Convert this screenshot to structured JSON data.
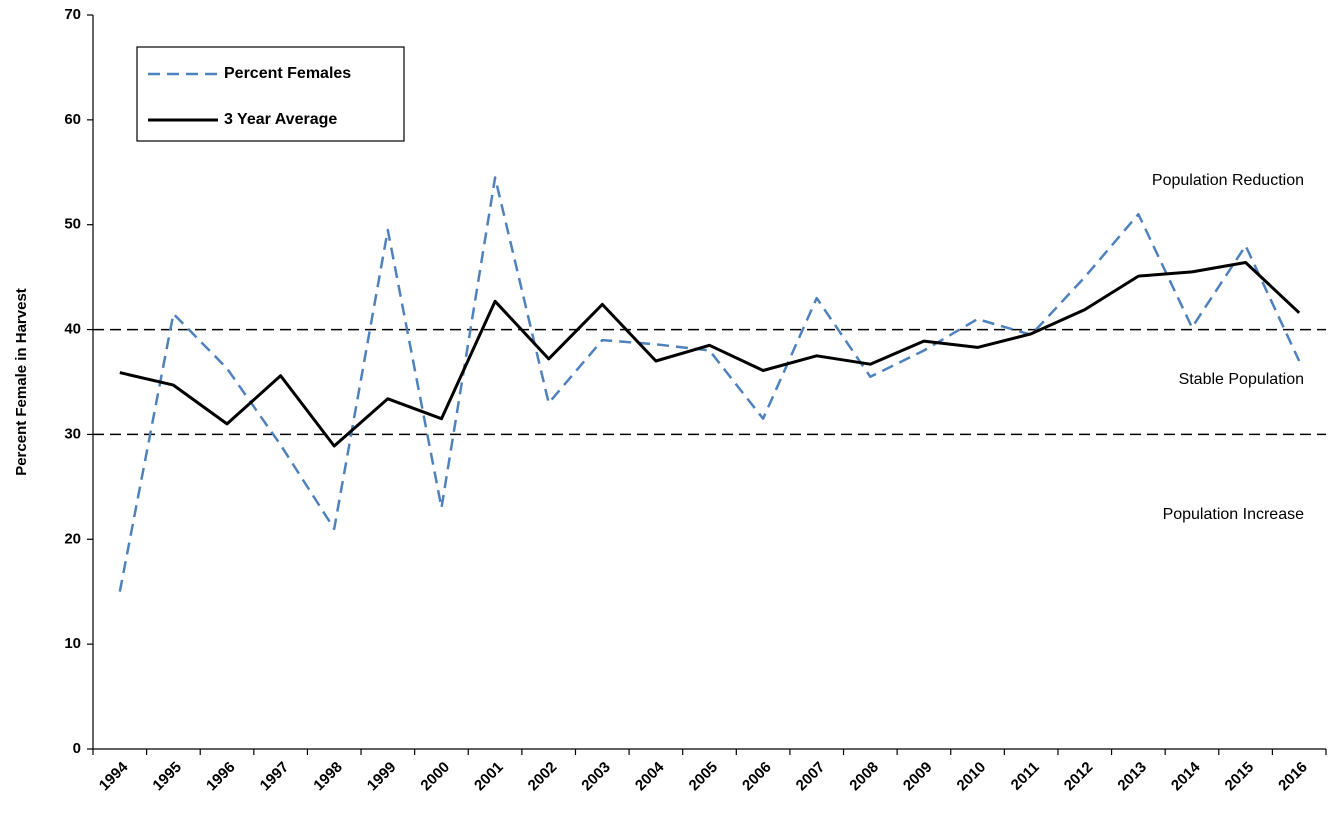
{
  "chart_data": {
    "type": "line",
    "y_label": "Percent Female in Harvest",
    "categories": [
      "1994",
      "1995",
      "1996",
      "1997",
      "1998",
      "1999",
      "2000",
      "2001",
      "2002",
      "2003",
      "2004",
      "2005",
      "2006",
      "2007",
      "2008",
      "2009",
      "2010",
      "2011",
      "2012",
      "2013",
      "2014",
      "2015",
      "2016"
    ],
    "series": [
      {
        "name": "Percent Females",
        "color": "#4f81bd",
        "dash": true,
        "values": [
          15,
          41.5,
          36.3,
          29,
          21,
          49.5,
          23,
          54.5,
          33,
          39,
          38.6,
          38,
          31.5,
          43,
          35.5,
          38,
          41,
          39.5,
          45,
          51,
          40.2,
          48,
          37
        ]
      },
      {
        "name": "3 Year Average",
        "color": "#000000",
        "dash": false,
        "values": [
          35.9,
          34.7,
          31,
          35.6,
          28.9,
          33.4,
          31.5,
          42.7,
          37.2,
          42.4,
          37,
          38.5,
          36.1,
          37.5,
          36.7,
          38.9,
          38.3,
          39.6,
          41.9,
          45.1,
          45.5,
          46.4,
          41.6
        ]
      }
    ],
    "reference_lines": [
      40,
      30
    ],
    "annotations": [
      "Population Reduction",
      "Stable Population",
      "Population Increase"
    ],
    "ylim": [
      0,
      70
    ],
    "yticks": [
      0,
      10,
      20,
      30,
      40,
      50,
      60,
      70
    ],
    "grid": false,
    "legend": "upper left"
  }
}
